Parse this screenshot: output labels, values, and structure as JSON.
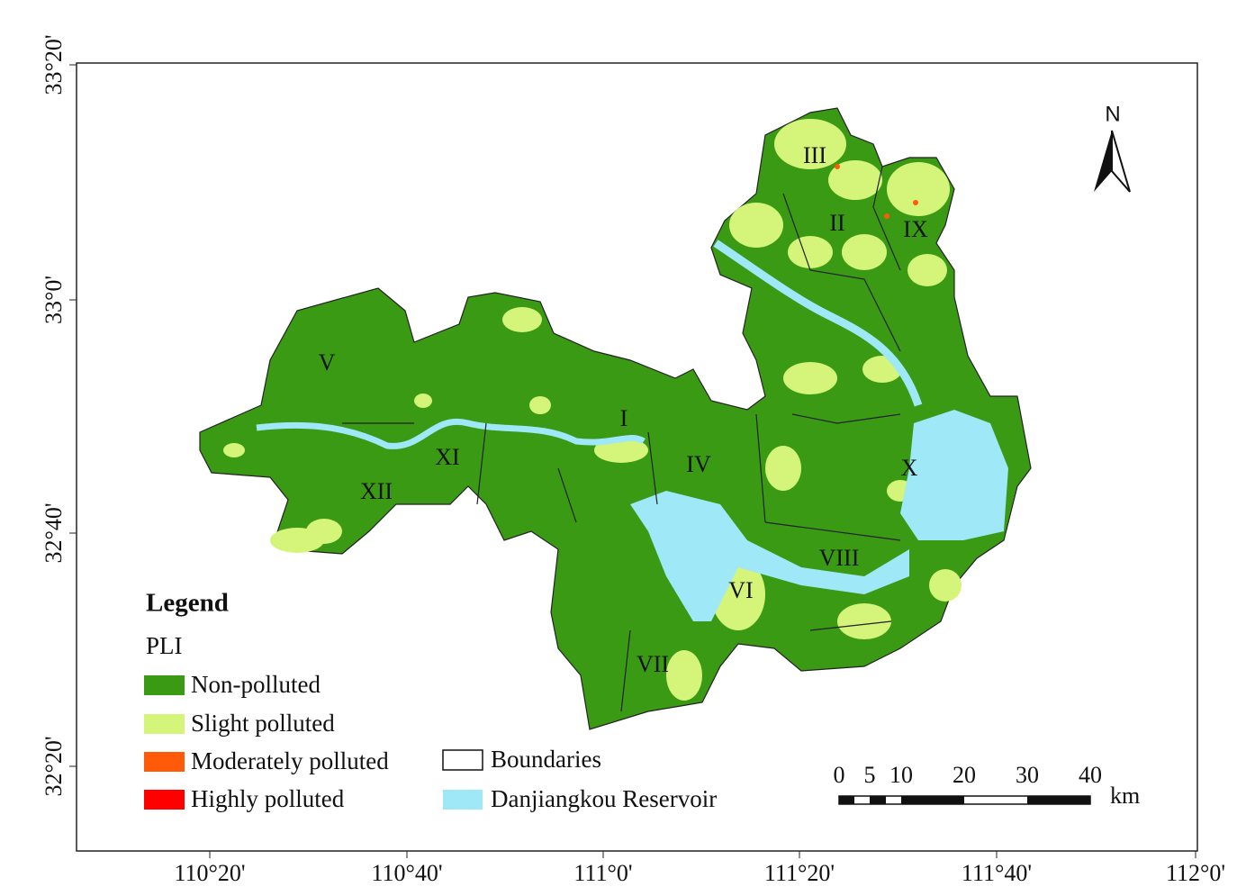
{
  "map": {
    "longitude_ticks": [
      "110°20'",
      "110°40'",
      "111°0'",
      "111°20'",
      "111°40'",
      "112°0'"
    ],
    "latitude_ticks": [
      "33°20'",
      "33°0'",
      "32°40'",
      "32°20'"
    ],
    "north_arrow": "N",
    "regions": [
      "I",
      "II",
      "III",
      "IV",
      "V",
      "VI",
      "VII",
      "VIII",
      "IX",
      "X",
      "XI",
      "XII"
    ],
    "legend": {
      "title": "Legend",
      "subtitle": "PLI",
      "items": [
        {
          "label": "Non-polluted",
          "color": "#3a9a14"
        },
        {
          "label": "Slight polluted",
          "color": "#d4f57a"
        },
        {
          "label": "Moderately polluted",
          "color": "#ff5a0a"
        },
        {
          "label": "Highly polluted",
          "color": "#ff0000"
        }
      ],
      "boundaries": "Boundaries",
      "reservoir": {
        "label": "Danjiangkou Reservoir",
        "color": "#9ee8f8"
      }
    },
    "scale_bar": {
      "labels": [
        "0",
        "5",
        "10",
        "20",
        "30",
        "40"
      ],
      "unit": "km"
    }
  }
}
